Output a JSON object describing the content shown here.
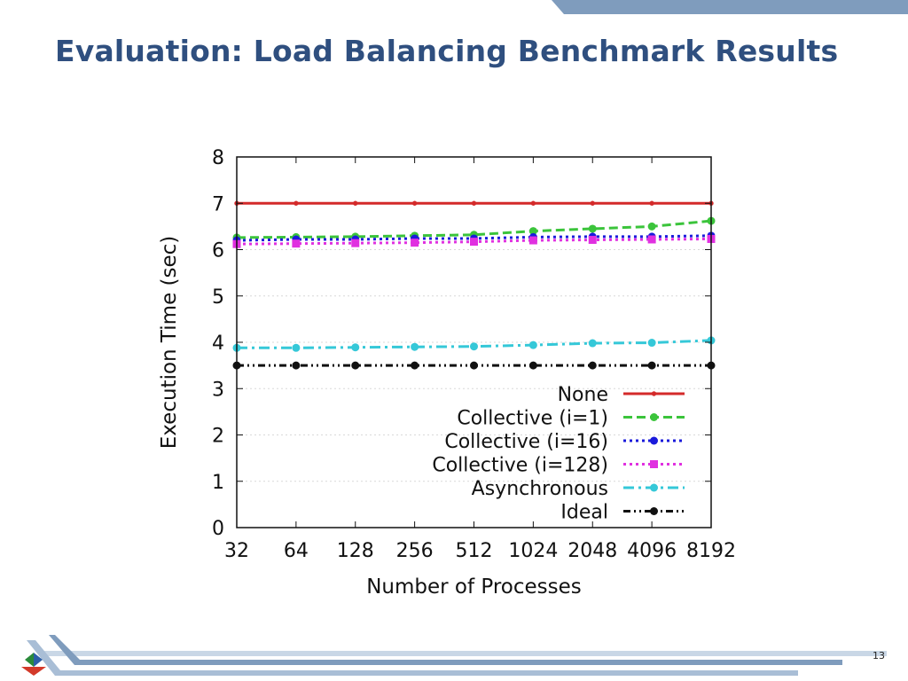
{
  "slide": {
    "title": "Evaluation: Load Balancing Benchmark Results",
    "page_number": "13"
  },
  "colors": {
    "title": "#2f4f7f",
    "band": "#7f9cbd",
    "band_light": "#c9d7e6"
  },
  "chart_data": {
    "type": "line",
    "xlabel": "Number of Processes",
    "ylabel": "Execution Time (sec)",
    "x": [
      "32",
      "64",
      "128",
      "256",
      "512",
      "1024",
      "2048",
      "4096",
      "8192"
    ],
    "ylim": [
      0,
      8
    ],
    "yticks": [
      0,
      1,
      2,
      3,
      4,
      5,
      6,
      7,
      8
    ],
    "grid": true,
    "legend_position": "bottom-right",
    "series": [
      {
        "name": "None",
        "color": "#d42a2a",
        "dash": "solid",
        "marker": "dot",
        "values": [
          7.0,
          7.0,
          7.0,
          7.0,
          7.0,
          7.0,
          7.0,
          7.0,
          7.0
        ]
      },
      {
        "name": "Collective (i=1)",
        "color": "#3bc43b",
        "dash": "dashed",
        "marker": "circle",
        "values": [
          6.26,
          6.27,
          6.28,
          6.3,
          6.32,
          6.4,
          6.45,
          6.5,
          6.62
        ]
      },
      {
        "name": "Collective (i=16)",
        "color": "#1a1adb",
        "dash": "dotted",
        "marker": "circle",
        "values": [
          6.2,
          6.22,
          6.22,
          6.24,
          6.24,
          6.27,
          6.28,
          6.28,
          6.3
        ]
      },
      {
        "name": "Collective (i=128)",
        "color": "#e030e0",
        "dash": "dotted",
        "marker": "square",
        "values": [
          6.12,
          6.13,
          6.14,
          6.15,
          6.17,
          6.2,
          6.21,
          6.22,
          6.23
        ]
      },
      {
        "name": "Asynchronous",
        "color": "#35c8d8",
        "dash": "dashdot",
        "marker": "circle",
        "values": [
          3.88,
          3.88,
          3.89,
          3.9,
          3.91,
          3.94,
          3.98,
          3.99,
          4.04
        ]
      },
      {
        "name": "Ideal",
        "color": "#111111",
        "dash": "dashdotdot",
        "marker": "circle",
        "values": [
          3.5,
          3.5,
          3.5,
          3.5,
          3.5,
          3.5,
          3.5,
          3.5,
          3.5
        ]
      }
    ]
  }
}
